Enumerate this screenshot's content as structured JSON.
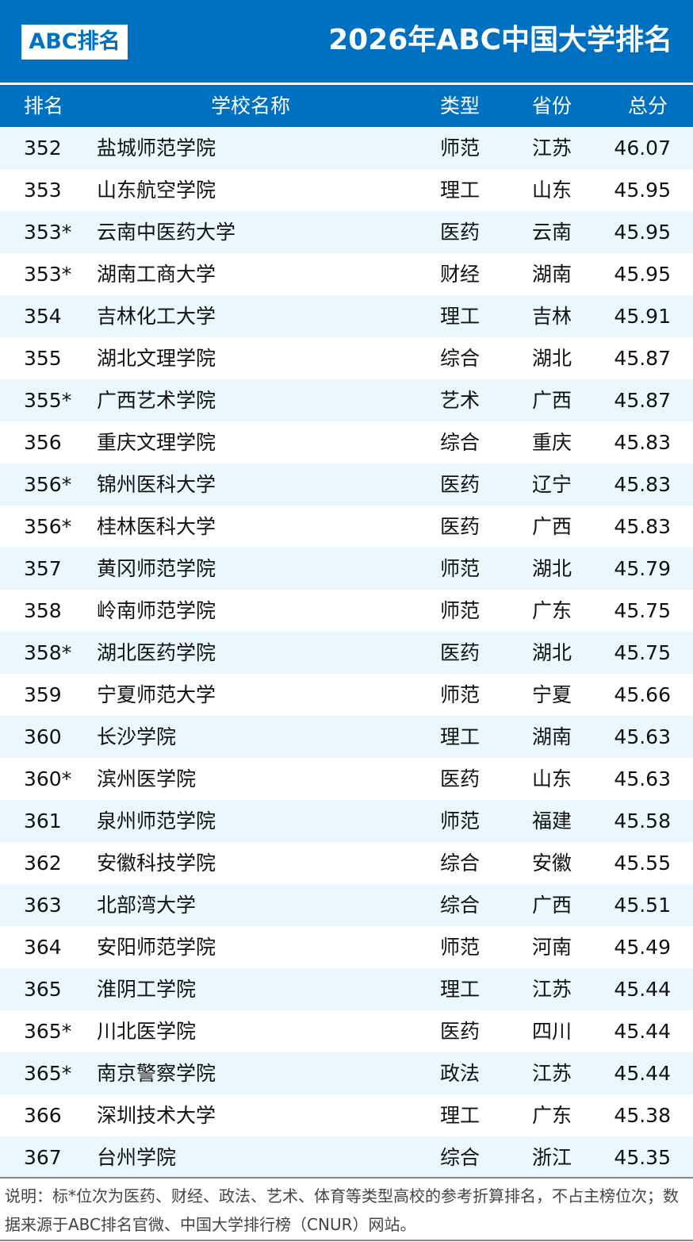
{
  "header": {
    "logo": "ABC排名",
    "title": "2026年ABC中国大学排名"
  },
  "columns": [
    "排名",
    "学校名称",
    "类型",
    "省份",
    "总分"
  ],
  "rows": [
    [
      "352",
      "盐城师范学院",
      "师范",
      "江苏",
      "46.07"
    ],
    [
      "353",
      "山东航空学院",
      "理工",
      "山东",
      "45.95"
    ],
    [
      "353*",
      "云南中医药大学",
      "医药",
      "云南",
      "45.95"
    ],
    [
      "353*",
      "湖南工商大学",
      "财经",
      "湖南",
      "45.95"
    ],
    [
      "354",
      "吉林化工大学",
      "理工",
      "吉林",
      "45.91"
    ],
    [
      "355",
      "湖北文理学院",
      "综合",
      "湖北",
      "45.87"
    ],
    [
      "355*",
      "广西艺术学院",
      "艺术",
      "广西",
      "45.87"
    ],
    [
      "356",
      "重庆文理学院",
      "综合",
      "重庆",
      "45.83"
    ],
    [
      "356*",
      "锦州医科大学",
      "医药",
      "辽宁",
      "45.83"
    ],
    [
      "356*",
      "桂林医科大学",
      "医药",
      "广西",
      "45.83"
    ],
    [
      "357",
      "黄冈师范学院",
      "师范",
      "湖北",
      "45.79"
    ],
    [
      "358",
      "岭南师范学院",
      "师范",
      "广东",
      "45.75"
    ],
    [
      "358*",
      "湖北医药学院",
      "医药",
      "湖北",
      "45.75"
    ],
    [
      "359",
      "宁夏师范大学",
      "师范",
      "宁夏",
      "45.66"
    ],
    [
      "360",
      "长沙学院",
      "理工",
      "湖南",
      "45.63"
    ],
    [
      "360*",
      "滨州医学院",
      "医药",
      "山东",
      "45.63"
    ],
    [
      "361",
      "泉州师范学院",
      "师范",
      "福建",
      "45.58"
    ],
    [
      "362",
      "安徽科技学院",
      "综合",
      "安徽",
      "45.55"
    ],
    [
      "363",
      "北部湾大学",
      "综合",
      "广西",
      "45.51"
    ],
    [
      "364",
      "安阳师范学院",
      "师范",
      "河南",
      "45.49"
    ],
    [
      "365",
      "淮阴工学院",
      "理工",
      "江苏",
      "45.44"
    ],
    [
      "365*",
      "川北医学院",
      "医药",
      "四川",
      "45.44"
    ],
    [
      "365*",
      "南京警察学院",
      "政法",
      "江苏",
      "45.44"
    ],
    [
      "366",
      "深圳技术大学",
      "理工",
      "广东",
      "45.38"
    ],
    [
      "367",
      "台州学院",
      "综合",
      "浙江",
      "45.35"
    ]
  ],
  "footnote": "说明：标*位次为医药、财经、政法、艺术、体育等类型高校的参考折算排名，不占主榜位次；数据来源于ABC排名官微、中国大学排行榜（CNUR）网站。",
  "colors": {
    "brand": "#0070c0",
    "row_alt": "#eaf8fd"
  }
}
